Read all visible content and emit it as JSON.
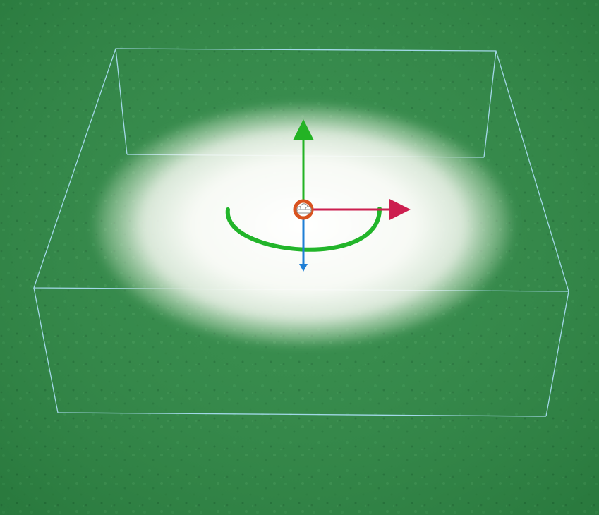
{
  "viewport": {
    "ground_color": "#2f8a46",
    "ground_highlight_color": "#4aa35d",
    "bounding_box_color": "#a8dcf0",
    "glow_color": "#ffffff"
  },
  "gizmo": {
    "x_axis_color": "#cc1f4f",
    "y_axis_color": "#23b324",
    "z_axis_color": "#1f7fd6",
    "rotation_ring_color": "#22b52a",
    "pivot_ring_color": "#d9531f",
    "pivot_icon": "cloud-icon"
  }
}
